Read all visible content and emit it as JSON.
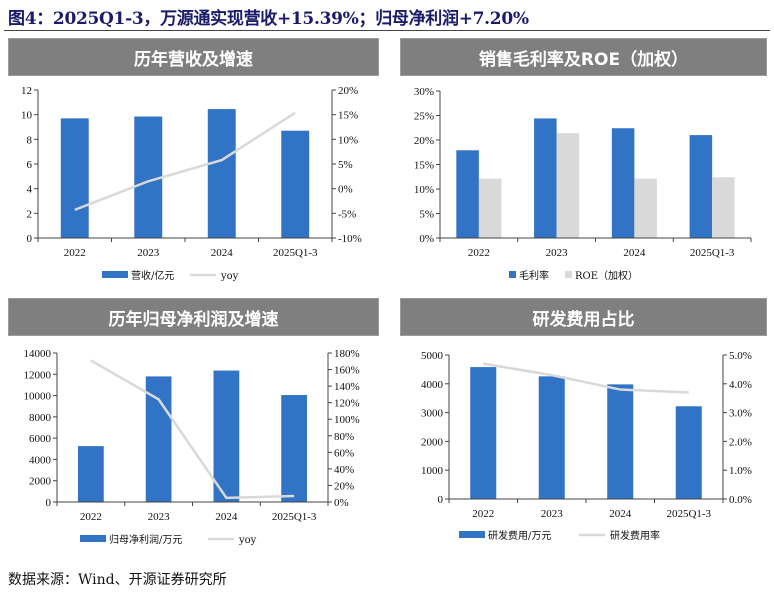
{
  "title": "图4：2025Q1-3，万源通实现营收+15.39%；归母净利润+7.20%",
  "source": "数据来源：Wind、开源证券研究所",
  "colors": {
    "bar_primary": "#3173C4",
    "bar_secondary": "#D9D9D9",
    "line": "#D9D9D9",
    "panel_header": "#7F7F7F",
    "title": "#1B1B6B"
  },
  "chart_data": [
    {
      "panel_title": "历年营收及增速",
      "type": "bar+line",
      "categories": [
        "2022",
        "2023",
        "2024",
        "2025Q1-3"
      ],
      "series": [
        {
          "name": "营收/亿元",
          "type": "bar",
          "axis": "left",
          "values": [
            9.7,
            9.85,
            10.45,
            8.7
          ]
        },
        {
          "name": "yoy",
          "type": "line",
          "axis": "right",
          "values": [
            -4.3,
            1.5,
            5.8,
            15.39
          ]
        }
      ],
      "left_axis": {
        "ylim": [
          0,
          12
        ],
        "ticks": [
          "0",
          "2",
          "4",
          "6",
          "8",
          "10",
          "12"
        ]
      },
      "right_axis": {
        "ylim": [
          -10,
          20
        ],
        "ticks": [
          "-10%",
          "-5%",
          "0%",
          "5%",
          "10%",
          "15%",
          "20%"
        ]
      },
      "legend": "bottom",
      "grid": false
    },
    {
      "panel_title": "销售毛利率及ROE（加权）",
      "type": "bar",
      "categories": [
        "2022",
        "2023",
        "2024",
        "2025Q1-3"
      ],
      "series": [
        {
          "name": "毛利率",
          "type": "bar",
          "axis": "left",
          "values": [
            17.9,
            24.4,
            22.4,
            21.0
          ]
        },
        {
          "name": "ROE（加权）",
          "type": "bar",
          "axis": "left",
          "values": [
            12.1,
            21.4,
            12.1,
            12.4
          ]
        }
      ],
      "left_axis": {
        "ylim": [
          0,
          30
        ],
        "ticks": [
          "0%",
          "5%",
          "10%",
          "15%",
          "20%",
          "25%",
          "30%"
        ]
      },
      "legend": "bottom",
      "grid": false
    },
    {
      "panel_title": "历年归母净利润及增速",
      "type": "bar+line",
      "categories": [
        "2022",
        "2023",
        "2024",
        "2025Q1-3"
      ],
      "series": [
        {
          "name": "归母净利润/万元",
          "type": "bar",
          "axis": "left",
          "values": [
            5250,
            11800,
            12350,
            10050
          ]
        },
        {
          "name": "yoy",
          "type": "line",
          "axis": "right",
          "values": [
            171,
            124,
            5,
            7.2
          ]
        }
      ],
      "left_axis": {
        "ylim": [
          0,
          14000
        ],
        "ticks": [
          "0",
          "2000",
          "4000",
          "6000",
          "8000",
          "10000",
          "12000",
          "14000"
        ]
      },
      "right_axis": {
        "ylim": [
          0,
          180
        ],
        "ticks": [
          "0%",
          "20%",
          "40%",
          "60%",
          "80%",
          "100%",
          "120%",
          "140%",
          "160%",
          "180%"
        ]
      },
      "legend": "bottom",
      "grid": false
    },
    {
      "panel_title": "研发费用占比",
      "type": "bar+line",
      "categories": [
        "2022",
        "2023",
        "2024",
        "2025Q1-3"
      ],
      "series": [
        {
          "name": "研发费用/万元",
          "type": "bar",
          "axis": "left",
          "values": [
            4580,
            4260,
            3980,
            3220
          ]
        },
        {
          "name": "研发费用率",
          "type": "line",
          "axis": "right",
          "values": [
            4.7,
            4.3,
            3.8,
            3.7
          ]
        }
      ],
      "left_axis": {
        "ylim": [
          0,
          5000
        ],
        "ticks": [
          "0",
          "1000",
          "2000",
          "3000",
          "4000",
          "5000"
        ]
      },
      "right_axis": {
        "ylim": [
          0,
          5
        ],
        "ticks": [
          "0.0%",
          "1.0%",
          "2.0%",
          "3.0%",
          "4.0%",
          "5.0%"
        ]
      },
      "legend": "bottom",
      "grid": false
    }
  ]
}
